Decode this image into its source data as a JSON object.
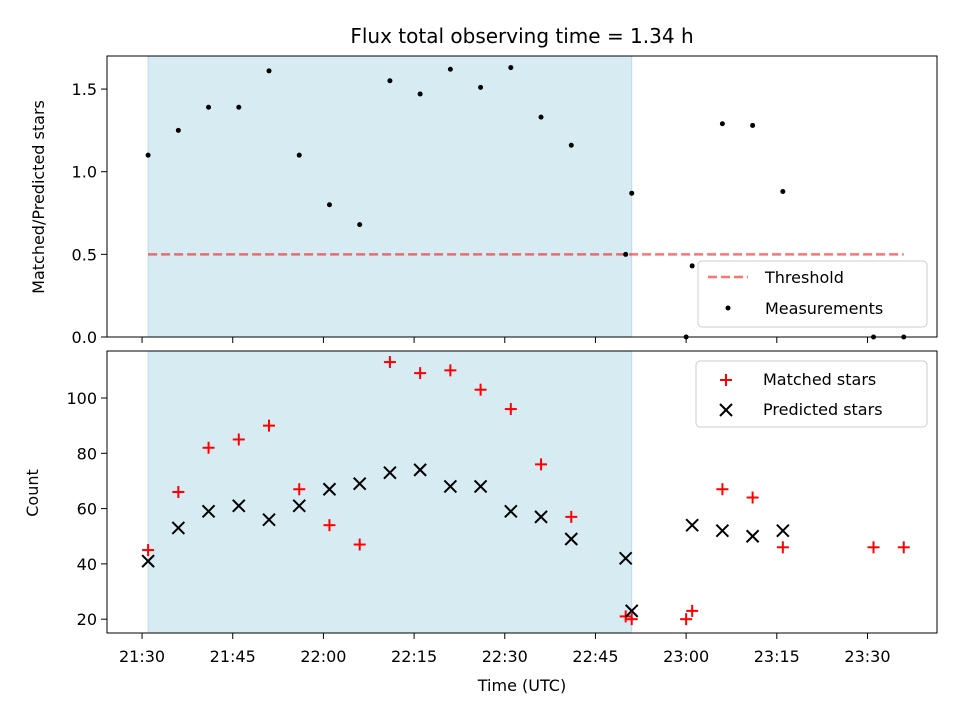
{
  "chart_data": {
    "type": "scatter",
    "title": "Flux total observing time = 1.34 h",
    "xlabel": "Time (UTC)",
    "x_ticks": [
      "21:30",
      "21:45",
      "22:00",
      "22:15",
      "22:30",
      "22:45",
      "23:00",
      "23:15",
      "23:30"
    ],
    "x_tick_minutes": [
      0,
      15,
      30,
      45,
      60,
      75,
      90,
      105,
      120
    ],
    "x_range_minutes": [
      -5.8,
      131.5
    ],
    "shaded_interval": {
      "start": "21:31",
      "end": "22:51",
      "color": "#add8e6"
    },
    "top_panel": {
      "ylabel": "Matched/Predicted stars",
      "ylim": [
        0,
        1.7
      ],
      "y_ticks": [
        0.0,
        0.5,
        1.0,
        1.5
      ],
      "threshold": {
        "name": "Threshold",
        "value": 0.5,
        "x_start": "21:31",
        "x_end": "23:36",
        "color": "#ff0000"
      },
      "measurements": {
        "name": "Measurements",
        "color": "#000000",
        "x": [
          "21:31",
          "21:36",
          "21:41",
          "21:46",
          "21:51",
          "21:56",
          "22:01",
          "22:06",
          "22:11",
          "22:16",
          "22:21",
          "22:26",
          "22:31",
          "22:36",
          "22:41",
          "22:50",
          "22:51",
          "23:00",
          "23:01",
          "23:06",
          "23:11",
          "23:16",
          "23:31",
          "23:36"
        ],
        "y": [
          1.1,
          1.25,
          1.39,
          1.39,
          1.61,
          1.1,
          0.8,
          0.68,
          1.55,
          1.47,
          1.62,
          1.51,
          1.63,
          1.33,
          1.16,
          0.5,
          0.87,
          0.0,
          0.43,
          1.29,
          1.28,
          0.88,
          0.0,
          0.0
        ]
      },
      "legend_position": "lower-right"
    },
    "bottom_panel": {
      "ylabel": "Count",
      "ylim": [
        15,
        117
      ],
      "y_ticks": [
        20,
        40,
        60,
        80,
        100
      ],
      "legend_position": "upper-right",
      "series": [
        {
          "name": "Matched stars",
          "marker": "plus",
          "color": "#ff0000",
          "x": [
            "21:31",
            "21:36",
            "21:41",
            "21:46",
            "21:51",
            "21:56",
            "22:01",
            "22:06",
            "22:11",
            "22:16",
            "22:21",
            "22:26",
            "22:31",
            "22:36",
            "22:41",
            "22:50",
            "22:51",
            "23:00",
            "23:01",
            "23:06",
            "23:11",
            "23:16",
            "23:31",
            "23:36"
          ],
          "y": [
            45,
            66,
            82,
            85,
            90,
            67,
            54,
            47,
            113,
            109,
            110,
            103,
            96,
            76,
            57,
            21,
            20,
            20,
            23,
            67,
            64,
            46,
            46,
            46
          ]
        },
        {
          "name": "Predicted stars",
          "marker": "x",
          "color": "#000000",
          "x": [
            "21:31",
            "21:36",
            "21:41",
            "21:46",
            "21:51",
            "21:56",
            "22:01",
            "22:06",
            "22:11",
            "22:16",
            "22:21",
            "22:26",
            "22:31",
            "22:36",
            "22:41",
            "22:50",
            "22:51",
            "23:01",
            "23:06",
            "23:11",
            "23:16"
          ],
          "y": [
            41,
            53,
            59,
            61,
            56,
            61,
            67,
            69,
            73,
            74,
            68,
            68,
            59,
            57,
            49,
            42,
            23,
            54,
            52,
            50,
            52
          ]
        }
      ]
    }
  }
}
